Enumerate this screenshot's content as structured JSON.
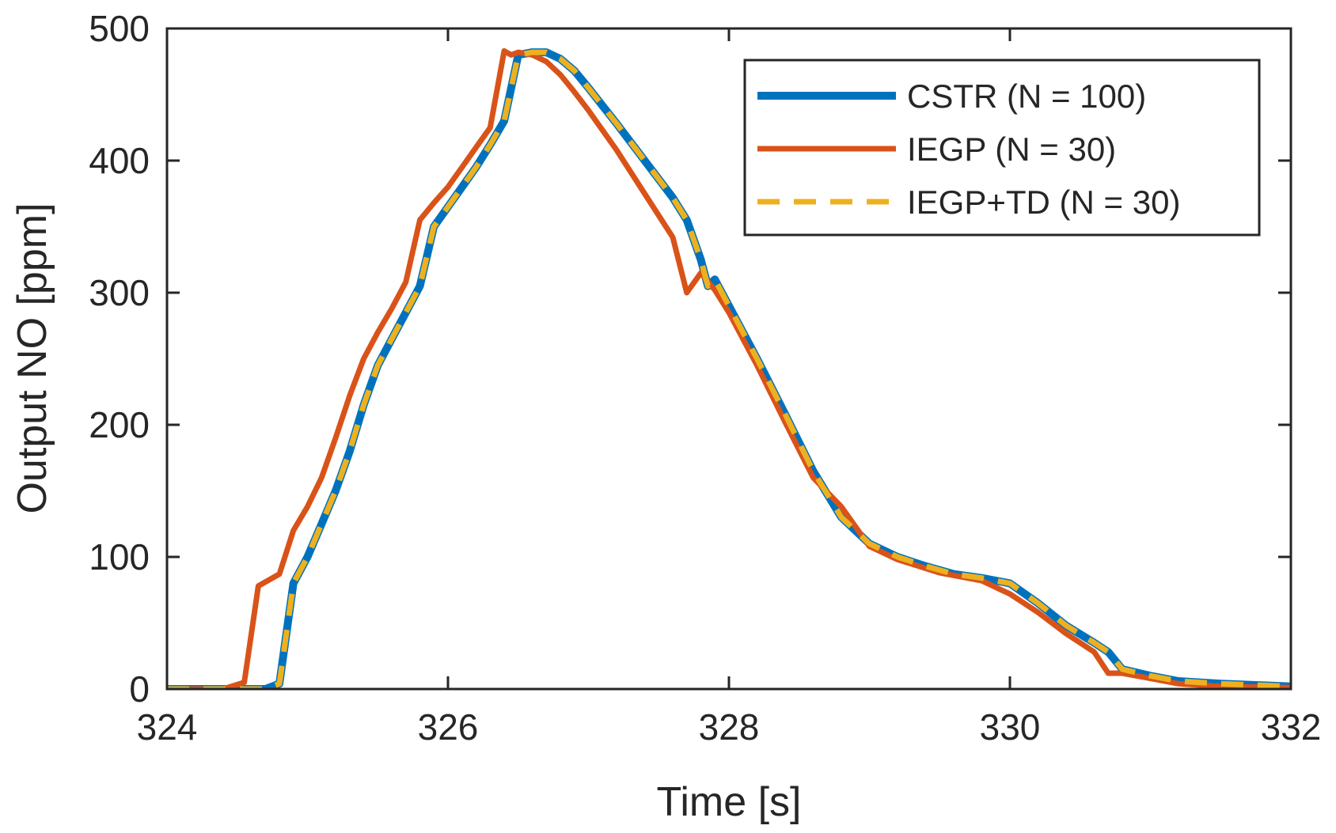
{
  "chart_data": {
    "type": "line",
    "title": "",
    "xlabel": "Time [s]",
    "ylabel": "Output NO [ppm]",
    "xlim": [
      324,
      332
    ],
    "ylim": [
      0,
      500
    ],
    "xticks": [
      324,
      326,
      328,
      330,
      332
    ],
    "yticks": [
      0,
      100,
      200,
      300,
      400,
      500
    ],
    "xtick_labels": [
      "324",
      "326",
      "328",
      "330",
      "332"
    ],
    "ytick_labels": [
      "0",
      "100",
      "200",
      "300",
      "400",
      "500"
    ],
    "grid": false,
    "legend_position": "top-right",
    "series": [
      {
        "name": "CSTR (N = 100)",
        "color": "#0072bd",
        "style": "solid",
        "x": [
          324.0,
          324.4,
          324.6,
          324.7,
          324.8,
          324.9,
          325.0,
          325.1,
          325.2,
          325.3,
          325.4,
          325.5,
          325.6,
          325.7,
          325.8,
          325.9,
          326.0,
          326.1,
          326.2,
          326.3,
          326.4,
          326.5,
          326.6,
          326.7,
          326.8,
          326.9,
          327.0,
          327.2,
          327.4,
          327.6,
          327.7,
          327.8,
          327.85,
          327.9,
          328.0,
          328.2,
          328.4,
          328.6,
          328.8,
          329.0,
          329.2,
          329.4,
          329.6,
          329.8,
          330.0,
          330.2,
          330.4,
          330.6,
          330.7,
          330.8,
          331.0,
          331.2,
          331.5,
          332.0
        ],
        "values": [
          0,
          0,
          0,
          0,
          4,
          80,
          100,
          125,
          150,
          180,
          215,
          245,
          265,
          285,
          305,
          350,
          365,
          380,
          395,
          412,
          430,
          480,
          482,
          482,
          477,
          468,
          455,
          428,
          400,
          372,
          355,
          325,
          305,
          310,
          290,
          250,
          208,
          165,
          130,
          110,
          100,
          93,
          87,
          84,
          80,
          65,
          48,
          35,
          28,
          15,
          10,
          6,
          4,
          2
        ]
      },
      {
        "name": "IEGP (N = 30)",
        "color": "#d95319",
        "style": "solid",
        "x": [
          324.0,
          324.4,
          324.55,
          324.65,
          324.8,
          324.9,
          325.0,
          325.1,
          325.2,
          325.3,
          325.4,
          325.5,
          325.6,
          325.7,
          325.8,
          325.9,
          326.0,
          326.1,
          326.2,
          326.3,
          326.4,
          326.45,
          326.5,
          326.6,
          326.7,
          326.8,
          326.9,
          327.0,
          327.2,
          327.4,
          327.6,
          327.7,
          327.8,
          327.9,
          328.0,
          328.2,
          328.4,
          328.6,
          328.8,
          329.0,
          329.2,
          329.5,
          329.8,
          330.0,
          330.2,
          330.4,
          330.6,
          330.7,
          330.8,
          331.0,
          331.2,
          331.5,
          332.0
        ],
        "values": [
          0,
          0,
          5,
          78,
          87,
          120,
          138,
          160,
          190,
          222,
          250,
          270,
          288,
          308,
          355,
          368,
          380,
          395,
          410,
          425,
          483,
          480,
          482,
          480,
          475,
          465,
          452,
          438,
          408,
          375,
          342,
          300,
          315,
          302,
          285,
          245,
          202,
          160,
          138,
          108,
          98,
          88,
          82,
          72,
          58,
          42,
          28,
          12,
          12,
          8,
          4,
          2,
          1
        ]
      },
      {
        "name": "IEGP+TD (N = 30)",
        "color": "#edb120",
        "style": "dashed",
        "x": [
          324.0,
          324.4,
          324.6,
          324.7,
          324.8,
          324.9,
          325.0,
          325.1,
          325.2,
          325.3,
          325.4,
          325.5,
          325.6,
          325.7,
          325.8,
          325.9,
          326.0,
          326.1,
          326.2,
          326.3,
          326.4,
          326.5,
          326.6,
          326.7,
          326.8,
          326.9,
          327.0,
          327.2,
          327.4,
          327.6,
          327.7,
          327.8,
          327.85,
          327.9,
          328.0,
          328.2,
          328.4,
          328.6,
          328.8,
          329.0,
          329.2,
          329.4,
          329.6,
          329.8,
          330.0,
          330.2,
          330.4,
          330.6,
          330.7,
          330.8,
          331.0,
          331.2,
          331.5,
          332.0
        ],
        "values": [
          0,
          0,
          0,
          0,
          4,
          80,
          100,
          125,
          150,
          180,
          215,
          245,
          265,
          285,
          305,
          350,
          365,
          380,
          395,
          412,
          430,
          480,
          482,
          482,
          477,
          468,
          455,
          428,
          400,
          372,
          355,
          325,
          305,
          310,
          290,
          250,
          208,
          165,
          130,
          110,
          100,
          93,
          87,
          84,
          80,
          65,
          48,
          35,
          28,
          15,
          10,
          6,
          4,
          2
        ]
      }
    ]
  }
}
